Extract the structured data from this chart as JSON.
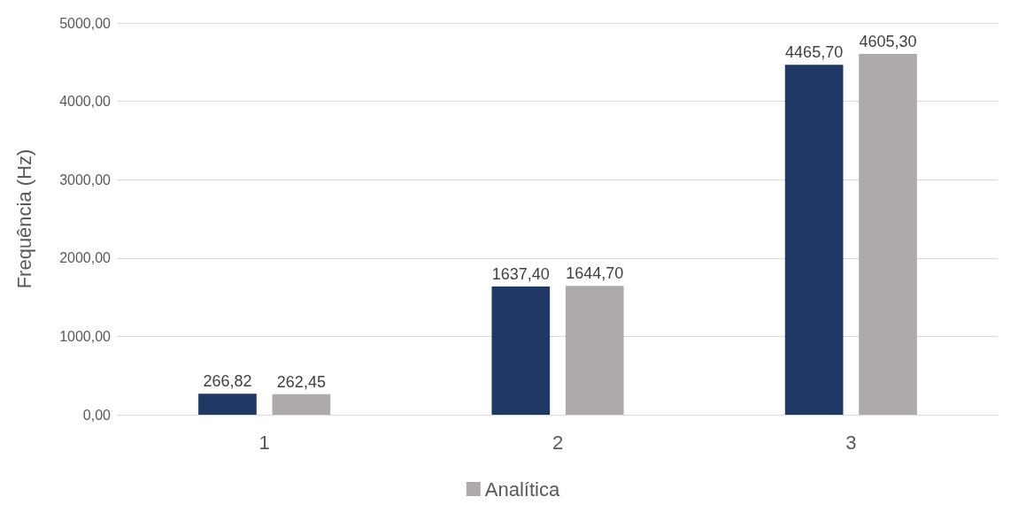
{
  "chart_data": {
    "type": "bar",
    "ylabel": "Frequência (Hz)",
    "categories": [
      "1",
      "2",
      "3"
    ],
    "series": [
      {
        "color": "#203864",
        "values": [
          266.82,
          1637.4,
          4465.7
        ],
        "value_labels": [
          "266,82",
          "1637,40",
          "4465,70"
        ]
      },
      {
        "name": "Analítica",
        "color": "#aeaaaa",
        "values": [
          262.45,
          1644.7,
          4605.3
        ],
        "value_labels": [
          "262,45",
          "1644,70",
          "4605,30"
        ]
      }
    ],
    "ylim": [
      0,
      5000
    ],
    "yticks": [
      {
        "value": 0,
        "label": "0,00"
      },
      {
        "value": 1000,
        "label": "1000,00"
      },
      {
        "value": 2000,
        "label": "2000,00"
      },
      {
        "value": 3000,
        "label": "3000,00"
      },
      {
        "value": 4000,
        "label": "4000,00"
      },
      {
        "value": 5000,
        "label": "5000,00"
      }
    ],
    "grid": "y",
    "legend": "bottom"
  }
}
